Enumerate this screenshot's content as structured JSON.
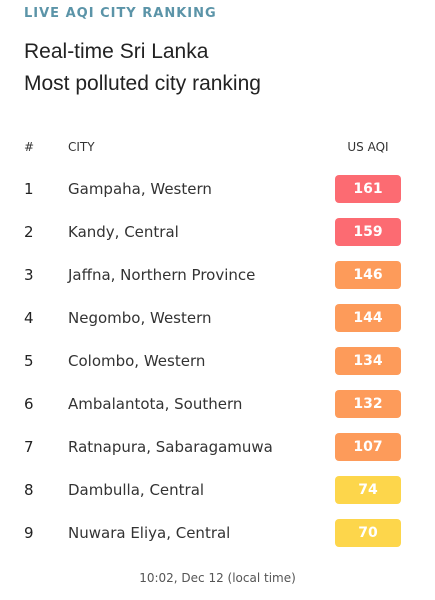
{
  "widget": {
    "kicker": "LIVE AQI CITY RANKING",
    "headline_line1": "Real-time Sri Lanka",
    "headline_line2": "Most polluted city ranking",
    "columns": {
      "rank": "#",
      "city": "CITY",
      "aqi": "US AQI"
    },
    "footer": "10:02, Dec 12 (local time)"
  },
  "colors": {
    "kicker": "#5b94a8",
    "unhealthy": "#fc6b72",
    "sensitive": "#fd9b5a",
    "moderate": "#fdd64b"
  },
  "ranking": [
    {
      "rank": "1",
      "city": "Gampaha, Western",
      "aqi": "161",
      "color": "#fc6b72"
    },
    {
      "rank": "2",
      "city": "Kandy, Central",
      "aqi": "159",
      "color": "#fc6b72"
    },
    {
      "rank": "3",
      "city": "Jaffna, Northern Province",
      "aqi": "146",
      "color": "#fd9b5a"
    },
    {
      "rank": "4",
      "city": "Negombo, Western",
      "aqi": "144",
      "color": "#fd9b5a"
    },
    {
      "rank": "5",
      "city": "Colombo, Western",
      "aqi": "134",
      "color": "#fd9b5a"
    },
    {
      "rank": "6",
      "city": "Ambalantota, Southern",
      "aqi": "132",
      "color": "#fd9b5a"
    },
    {
      "rank": "7",
      "city": "Ratnapura, Sabaragamuwa",
      "aqi": "107",
      "color": "#fd9b5a"
    },
    {
      "rank": "8",
      "city": "Dambulla, Central",
      "aqi": "74",
      "color": "#fdd64b"
    },
    {
      "rank": "9",
      "city": "Nuwara Eliya, Central",
      "aqi": "70",
      "color": "#fdd64b"
    }
  ]
}
